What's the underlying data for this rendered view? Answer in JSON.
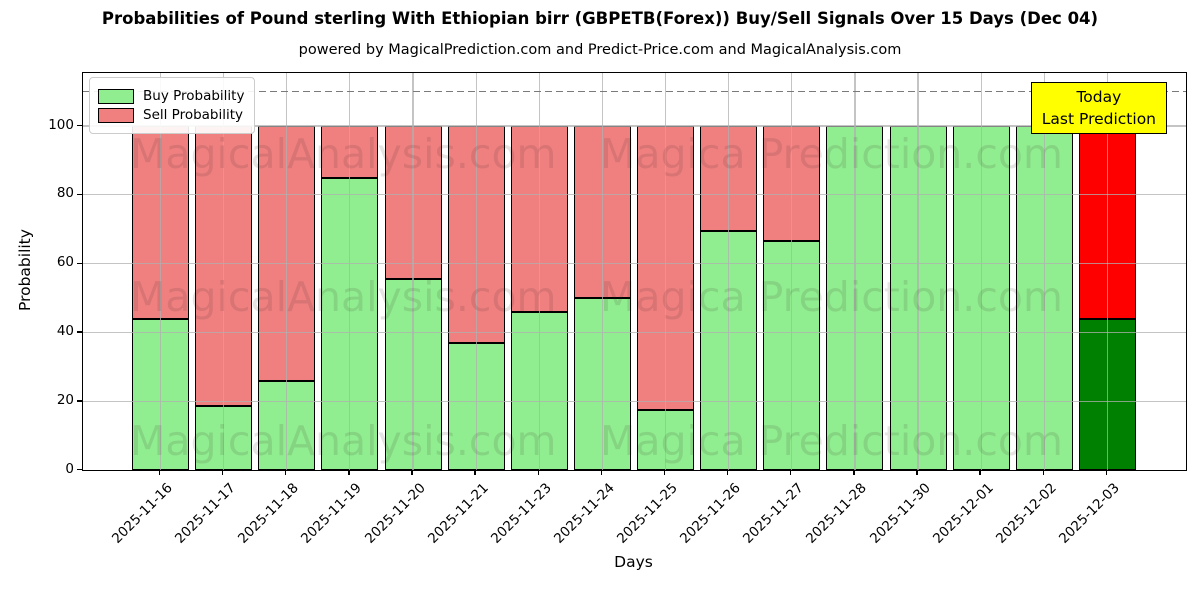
{
  "title": "Probabilities of Pound sterling With Ethiopian birr (GBPETB(Forex)) Buy/Sell Signals Over 15 Days (Dec 04)",
  "subtitle": "powered by MagicalPrediction.com and Predict-Price.com and MagicalAnalysis.com",
  "legend": {
    "items": [
      {
        "label": "Buy Probability",
        "color": "#90EE90"
      },
      {
        "label": "Sell Probability",
        "color": "#F08080"
      }
    ]
  },
  "annotation": {
    "line1": "Today",
    "line2": "Last Prediction",
    "bg_color": "#FFFF00"
  },
  "watermarks": {
    "left_text": "MagicalAnalysis.com",
    "right_text": "Magica Prediction.com"
  },
  "colors": {
    "buy_normal": "#90EE90",
    "sell_normal": "#F08080",
    "buy_today": "#008000",
    "sell_today": "#FF0000",
    "grid": "#b0b0b0",
    "dashed_line": "#7a7a7a"
  },
  "chart_data": {
    "type": "bar",
    "stacked": true,
    "title": "Probabilities of Pound sterling With Ethiopian birr (GBPETB(Forex)) Buy/Sell Signals Over 15 Days (Dec 04)",
    "xlabel": "Days",
    "ylabel": "Probability",
    "categories": [
      "2025-11-16",
      "2025-11-17",
      "2025-11-18",
      "2025-11-19",
      "2025-11-20",
      "2025-11-21",
      "2025-11-23",
      "2025-11-24",
      "2025-11-25",
      "2025-11-26",
      "2025-11-27",
      "2025-11-28",
      "2025-11-30",
      "2025-12-01",
      "2025-12-02",
      "2025-12-03"
    ],
    "series": [
      {
        "name": "Buy Probability",
        "values": [
          44,
          18.5,
          26,
          85,
          55.5,
          37,
          46,
          50,
          17.5,
          69.5,
          66.5,
          100,
          100,
          100,
          100,
          44
        ],
        "point_colors": [
          "#90EE90",
          "#90EE90",
          "#90EE90",
          "#90EE90",
          "#90EE90",
          "#90EE90",
          "#90EE90",
          "#90EE90",
          "#90EE90",
          "#90EE90",
          "#90EE90",
          "#90EE90",
          "#90EE90",
          "#90EE90",
          "#90EE90",
          "#008000"
        ]
      },
      {
        "name": "Sell Probability",
        "values": [
          56,
          81.5,
          74,
          15,
          44.5,
          63,
          54,
          50,
          82.5,
          30.5,
          33.5,
          0,
          0,
          0,
          0,
          56
        ],
        "point_colors": [
          "#F08080",
          "#F08080",
          "#F08080",
          "#F08080",
          "#F08080",
          "#F08080",
          "#F08080",
          "#F08080",
          "#F08080",
          "#F08080",
          "#F08080",
          "#F08080",
          "#F08080",
          "#F08080",
          "#F08080",
          "#FF0000"
        ]
      }
    ],
    "yticks": [
      0,
      20,
      40,
      60,
      80,
      100
    ],
    "ylim": [
      0,
      115.5
    ],
    "dashed_line_y": 110,
    "grid": true,
    "legend_position": "upper-left"
  }
}
